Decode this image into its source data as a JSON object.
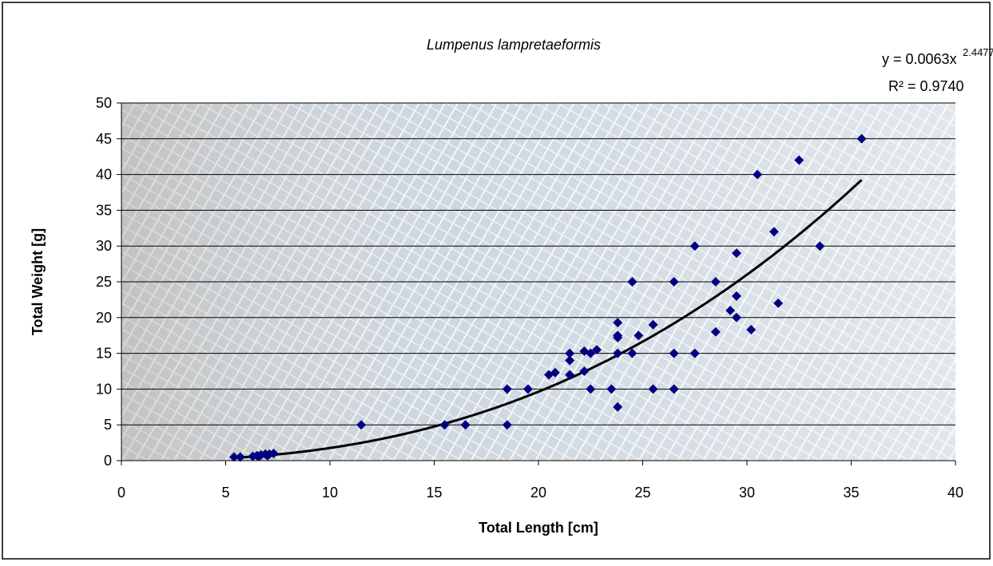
{
  "chart_data": {
    "type": "scatter",
    "title": "Lumpenus lampretaeformis",
    "x_label": "Total Length [cm]",
    "y_label": "Total Weight [g]",
    "series": [
      {
        "color": "#000080",
        "x": [
          5.4,
          5.7,
          6.3,
          6.5,
          6.6,
          6.7,
          6.9,
          7.0,
          7.1,
          7.3,
          11.5,
          15.5,
          16.5,
          18.5,
          18.5,
          19.5,
          20.5,
          20.8,
          21.5,
          21.5,
          21.5,
          22.2,
          22.2,
          22.5,
          22.5,
          22.8,
          23.5,
          23.8,
          23.8,
          23.8,
          23.8,
          23.8,
          24.5,
          24.5,
          24.8,
          25.5,
          25.5,
          26.5,
          26.5,
          26.5,
          27.5,
          27.5,
          28.5,
          28.5,
          29.2,
          29.5,
          29.5,
          29.5,
          30.2,
          30.5,
          31.3,
          31.5,
          32.5,
          33.5,
          35.5
        ],
        "values": [
          0.5,
          0.5,
          0.6,
          0.7,
          0.6,
          0.8,
          0.9,
          0.7,
          0.9,
          1.0,
          5,
          5,
          5,
          10,
          5,
          10,
          12,
          12.3,
          15,
          14,
          12,
          12.5,
          15.3,
          15,
          10,
          15.5,
          10,
          7.5,
          15,
          17.2,
          17.5,
          19.3,
          25,
          15,
          17.5,
          19,
          10,
          25,
          15,
          10,
          30,
          15,
          25,
          18,
          21,
          23,
          29,
          20,
          18.3,
          40,
          32,
          22,
          42,
          30,
          45
        ]
      }
    ],
    "trendline": {
      "type": "power",
      "coefficient": 0.0063,
      "exponent": 2.4477,
      "color": "#000000",
      "equation_label": "y = 0.0063x",
      "exponent_label": "2.4477",
      "r2_label": "R² = 0.9740"
    },
    "xlim": [
      0,
      40
    ],
    "xticks": [
      0,
      5,
      10,
      15,
      20,
      25,
      30,
      35,
      40
    ],
    "ylim": [
      0,
      50
    ],
    "yticks": [
      0,
      5,
      10,
      15,
      20,
      25,
      30,
      35,
      40,
      45,
      50
    ],
    "grid": true
  }
}
